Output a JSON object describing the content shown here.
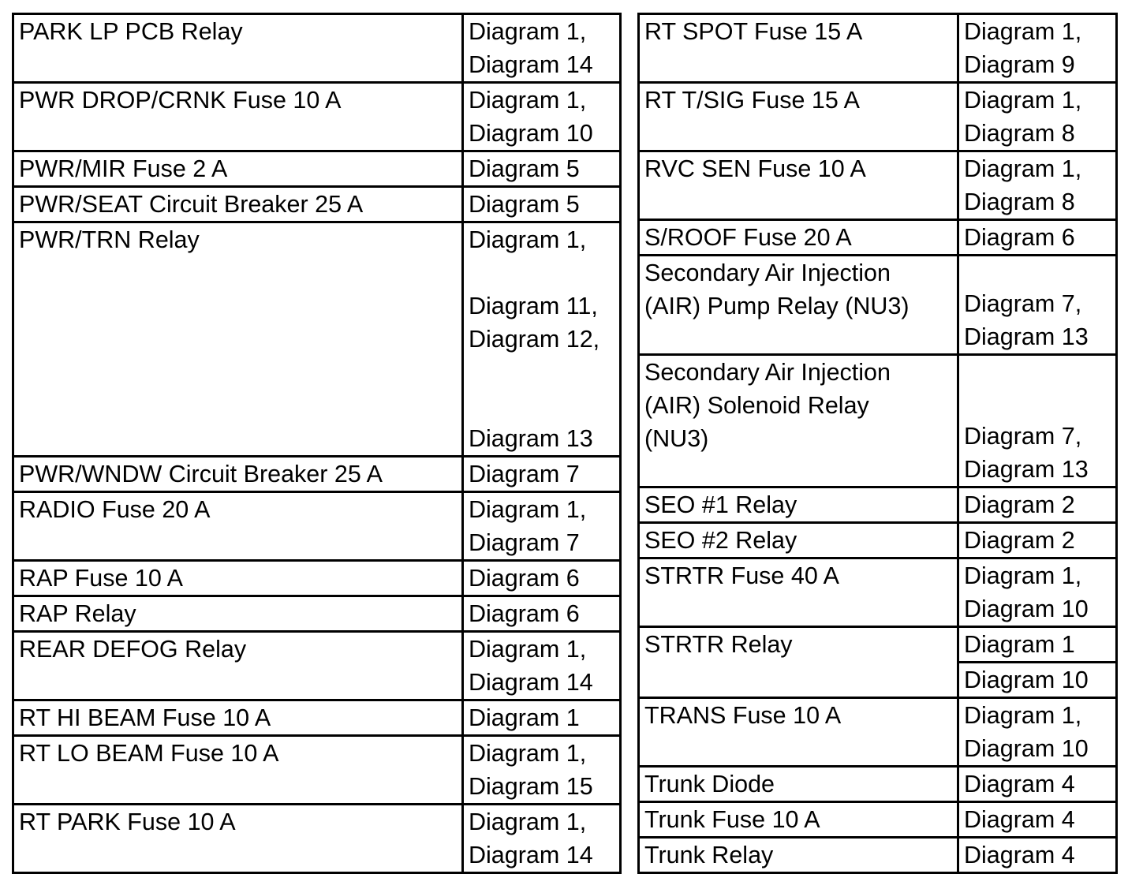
{
  "left_table": {
    "rows": [
      {
        "component": "PARK LP PCB Relay",
        "diagrams": [
          "Diagram 1,",
          "Diagram 14"
        ]
      },
      {
        "component": "PWR DROP/CRNK Fuse 10 A",
        "diagrams": [
          "Diagram 1,",
          "Diagram 10"
        ]
      },
      {
        "component": "PWR/MIR Fuse 2 A",
        "diagrams": [
          "Diagram 5"
        ]
      },
      {
        "component": "PWR/SEAT Circuit Breaker 25 A",
        "diagrams": [
          "Diagram 5"
        ]
      },
      {
        "component": "PWR/TRN Relay",
        "diagrams": [
          "Diagram 1,",
          "Diagram 11,",
          "Diagram 12,",
          "Diagram 13"
        ]
      },
      {
        "component": "PWR/WNDW Circuit Breaker 25 A",
        "diagrams": [
          "Diagram 7"
        ]
      },
      {
        "component": "RADIO Fuse 20 A",
        "diagrams": [
          "Diagram 1,",
          "Diagram 7"
        ]
      },
      {
        "component": "RAP Fuse 10 A",
        "diagrams": [
          "Diagram 6"
        ]
      },
      {
        "component": "RAP Relay",
        "diagrams": [
          "Diagram 6"
        ]
      },
      {
        "component": "REAR DEFOG Relay",
        "diagrams": [
          "Diagram 1,",
          "Diagram 14"
        ]
      },
      {
        "component": "RT HI BEAM Fuse 10 A",
        "diagrams": [
          "Diagram 1"
        ]
      },
      {
        "component": "RT LO BEAM Fuse 10 A",
        "diagrams": [
          "Diagram 1,",
          "Diagram 15"
        ]
      },
      {
        "component": "RT PARK Fuse 10 A",
        "diagrams": [
          "Diagram 1,",
          "Diagram 14"
        ]
      }
    ]
  },
  "right_table": {
    "rows": [
      {
        "component": "RT SPOT Fuse 15 A",
        "diagrams": [
          "Diagram 1,",
          "Diagram 9"
        ]
      },
      {
        "component": "RT T/SIG Fuse 15 A",
        "diagrams": [
          "Diagram 1,",
          "Diagram 8"
        ]
      },
      {
        "component": "RVC SEN Fuse 10 A",
        "diagrams": [
          "Diagram 1,",
          "Diagram 8"
        ]
      },
      {
        "component": "S/ROOF Fuse 20 A",
        "diagrams": [
          "Diagram 6"
        ]
      },
      {
        "component_lines": [
          "Secondary Air Injection",
          "(AIR) Pump Relay (NU3)"
        ],
        "diagrams": [
          "Diagram 7,",
          "Diagram 13"
        ]
      },
      {
        "component_lines": [
          "Secondary Air Injection",
          "(AIR) Solenoid Relay",
          "(NU3)"
        ],
        "diagrams": [
          "Diagram 7,",
          "Diagram 13"
        ]
      },
      {
        "component": "SEO #1 Relay",
        "diagrams": [
          "Diagram 2"
        ]
      },
      {
        "component": "SEO #2 Relay",
        "diagrams": [
          "Diagram 2"
        ]
      },
      {
        "component": "STRTR Fuse 40 A",
        "diagrams": [
          "Diagram 1,",
          "Diagram 10"
        ]
      },
      {
        "component": "STRTR Relay",
        "diagrams": [
          "Diagram 1",
          "Diagram 10"
        ]
      },
      {
        "component": "TRANS Fuse 10 A",
        "diagrams": [
          "Diagram 1,",
          "Diagram 10"
        ]
      },
      {
        "component": "Trunk Diode",
        "diagrams": [
          "Diagram 4"
        ]
      },
      {
        "component": "Trunk Fuse 10 A",
        "diagrams": [
          "Diagram 4"
        ]
      },
      {
        "component": "Trunk Relay",
        "diagrams": [
          "Diagram 4"
        ]
      }
    ]
  }
}
